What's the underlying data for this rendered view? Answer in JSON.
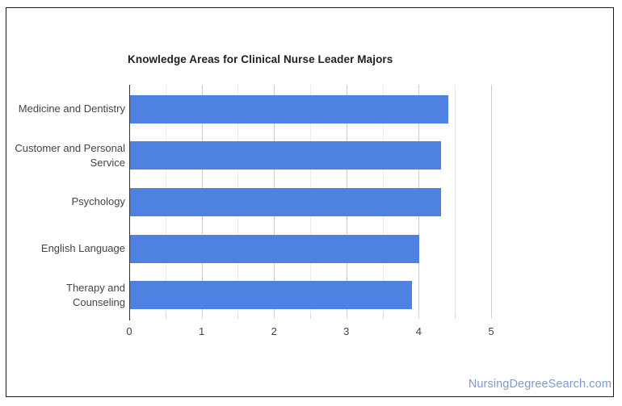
{
  "chart_data": {
    "type": "bar",
    "orientation": "horizontal",
    "title": "Knowledge Areas for Clinical Nurse Leader Majors",
    "categories": [
      "Medicine and Dentistry",
      "Customer and Personal Service",
      "Psychology",
      "English Language",
      "Therapy and Counseling"
    ],
    "values": [
      4.4,
      4.3,
      4.3,
      4.0,
      3.9
    ],
    "xlabel": "",
    "ylabel": "",
    "xlim": [
      0,
      5
    ],
    "x_ticks": [
      0,
      1,
      2,
      3,
      4,
      5
    ],
    "minor_tick_step": 0.5,
    "grid": true,
    "legend": "none",
    "bar_color": "#4e81e1",
    "major_grid_color": "#cccccc",
    "minor_grid_color": "#ebebeb",
    "axis_line_color": "#333333",
    "tick_color": "#d9d9d9",
    "label_color": "#444444",
    "title_color": "#1f1f1f"
  },
  "watermark": {
    "text": "NursingDegreeSearch.com",
    "color": "#7f99d1"
  },
  "frame": {
    "border_color": "#1c1c1c",
    "background": "#ffffff"
  }
}
